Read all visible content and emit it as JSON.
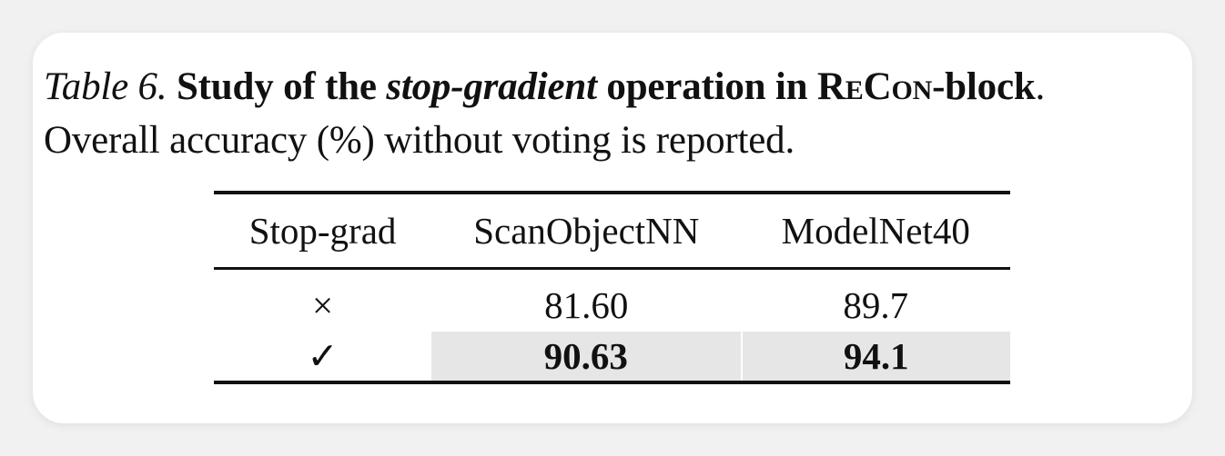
{
  "caption": {
    "label": "Table 6.",
    "title_part1": "Study of the ",
    "title_italic": "stop-gradient",
    "title_part2": " operation in ",
    "title_recon": "ReCon",
    "title_part3": "-block",
    "title_end": ".",
    "line2": "Overall accuracy (%) without voting is reported."
  },
  "table": {
    "headers": [
      "Stop-grad",
      "ScanObjectNN",
      "ModelNet40"
    ],
    "rows": [
      {
        "stop_grad": "×",
        "scanobjectnn": "81.60",
        "modelnet40": "89.7",
        "highlight": false,
        "bold": false
      },
      {
        "stop_grad": "✓",
        "scanobjectnn": "90.63",
        "modelnet40": "94.1",
        "highlight": true,
        "bold": true
      }
    ],
    "highlight_color": "#e6e6e6"
  }
}
